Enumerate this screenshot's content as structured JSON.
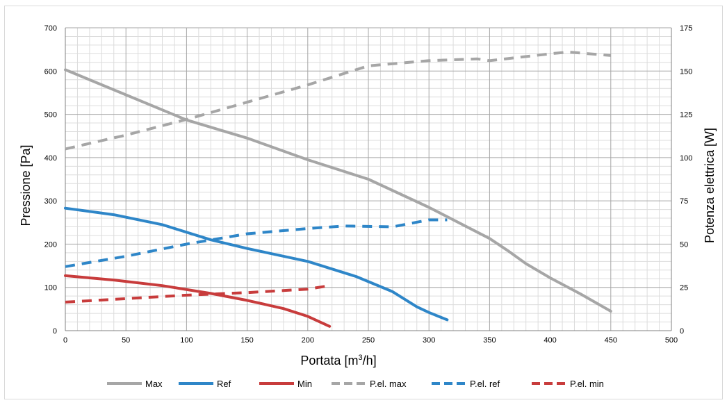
{
  "chart_data": {
    "type": "line",
    "xlabel": "Portata [m3/h]",
    "xlabel_base": "Portata [m",
    "xlabel_sup": "3",
    "xlabel_tail": "/h]",
    "ylabel_left": "Pressione [Pa]",
    "ylabel_right": "Potenza elettrica [W]",
    "xlim": [
      0,
      500
    ],
    "ylim_left": [
      0,
      700
    ],
    "ylim_right": [
      0,
      175
    ],
    "x_ticks": [
      0,
      50,
      100,
      150,
      200,
      250,
      300,
      350,
      400,
      450,
      500
    ],
    "y_ticks_left": [
      0,
      100,
      200,
      300,
      400,
      500,
      600,
      700
    ],
    "y_ticks_right": [
      0,
      25,
      50,
      75,
      100,
      125,
      150,
      175
    ],
    "grid": true,
    "legend_position": "bottom",
    "series": [
      {
        "name": "Max",
        "axis": "left",
        "style": "solid",
        "color": "#a6a6a6",
        "x": [
          0,
          50,
          100,
          150,
          200,
          250,
          300,
          350,
          365,
          380,
          400,
          425,
          450
        ],
        "y": [
          603,
          545,
          487,
          445,
          395,
          350,
          285,
          213,
          185,
          155,
          122,
          85,
          45
        ]
      },
      {
        "name": "Ref",
        "axis": "left",
        "style": "solid",
        "color": "#2e86c8",
        "x": [
          0,
          40,
          80,
          120,
          150,
          200,
          240,
          270,
          290,
          300,
          315
        ],
        "y": [
          283,
          268,
          245,
          210,
          190,
          160,
          125,
          90,
          55,
          42,
          25
        ]
      },
      {
        "name": "Min",
        "axis": "left",
        "style": "solid",
        "color": "#c83c3c",
        "x": [
          0,
          40,
          80,
          120,
          150,
          180,
          200,
          218
        ],
        "y": [
          127,
          117,
          104,
          86,
          70,
          51,
          33,
          10
        ]
      },
      {
        "name": "P.el. max",
        "axis": "right",
        "style": "dashed",
        "color": "#a6a6a6",
        "x": [
          0,
          50,
          100,
          150,
          200,
          250,
          300,
          340,
          350,
          375,
          400,
          415,
          450
        ],
        "y": [
          105,
          113,
          122,
          132,
          142,
          153,
          156,
          157,
          156,
          158,
          160,
          161,
          159
        ]
      },
      {
        "name": "P.el. ref",
        "axis": "right",
        "style": "dashed",
        "color": "#2e86c8",
        "x": [
          0,
          50,
          100,
          150,
          200,
          230,
          270,
          300,
          315
        ],
        "y": [
          37,
          43,
          50,
          56,
          59,
          60.5,
          60,
          64,
          64
        ]
      },
      {
        "name": "P.el. min",
        "axis": "right",
        "style": "dashed",
        "color": "#c83c3c",
        "x": [
          0,
          50,
          100,
          150,
          200,
          218
        ],
        "y": [
          16.5,
          18.5,
          20.5,
          22,
          24,
          26
        ]
      }
    ]
  }
}
